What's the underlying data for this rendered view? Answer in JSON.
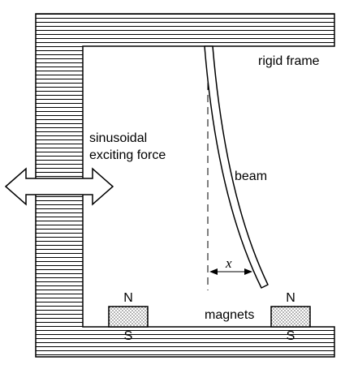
{
  "labels": {
    "rigid_frame": "rigid frame",
    "exciting_force_line1": "sinusoidal",
    "exciting_force_line2": "exciting force",
    "beam": "beam",
    "displacement": "x",
    "magnets": "magnets"
  },
  "magnets": [
    {
      "north": "N",
      "south": "S"
    },
    {
      "north": "N",
      "south": "S"
    }
  ],
  "colors": {
    "stroke": "#000000",
    "hatch": "#000000",
    "background": "#ffffff"
  },
  "icons": {
    "force_arrow": "double-headed-arrow-icon"
  }
}
